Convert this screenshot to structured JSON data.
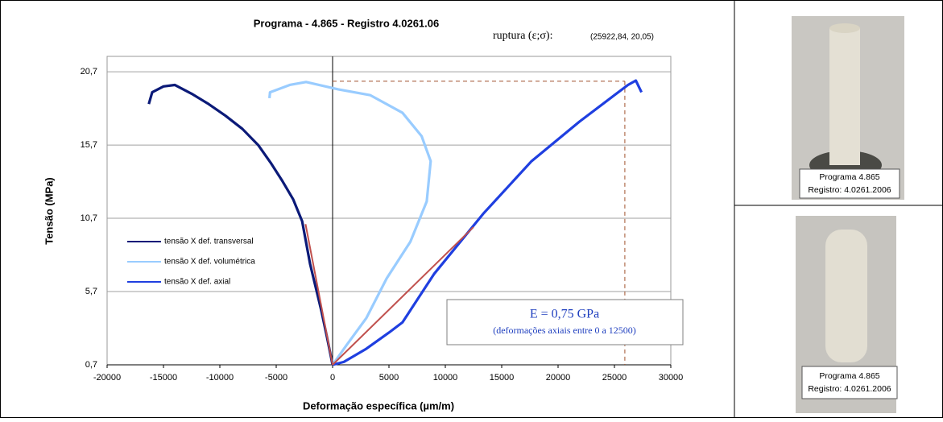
{
  "chart_data": {
    "type": "line",
    "title": "Programa - 4.865 - Registro 4.0261.06",
    "annotation_label": "ruptura (ε;σ):",
    "annotation_value": "(25922,84, 20,05)",
    "rupture": {
      "x": 25922.84,
      "y": 20.05
    },
    "x_label": "Deformação específica (µm/m)",
    "y_label": "Tensão (MPa)",
    "xlim": [
      -20000,
      30000
    ],
    "xticks": [
      -20000,
      -15000,
      -10000,
      -5000,
      0,
      5000,
      10000,
      15000,
      20000,
      25000,
      30000
    ],
    "ylim": [
      0.7,
      21.75
    ],
    "yticks": [
      {
        "value": 0.7,
        "label": "0,7"
      },
      {
        "value": 5.7,
        "label": "5,7"
      },
      {
        "value": 10.7,
        "label": "10,7"
      },
      {
        "value": 15.7,
        "label": "15,7"
      },
      {
        "value": 20.7,
        "label": "20,7"
      }
    ],
    "grid": true,
    "series": [
      {
        "name": "tensão X def. transversal",
        "color": "#0b1a78",
        "x": [
          0,
          -500,
          -1000,
          -1500,
          -2000,
          -2700,
          -3500,
          -4500,
          -5500,
          -6600,
          -8000,
          -9500,
          -11000,
          -12500,
          -14000,
          -15000,
          -16000,
          -16300
        ],
        "values": [
          0.7,
          2.6,
          4.4,
          6.0,
          7.6,
          10.5,
          12.0,
          13.3,
          14.5,
          15.7,
          16.8,
          17.7,
          18.5,
          19.2,
          19.8,
          19.7,
          19.3,
          18.5
        ]
      },
      {
        "name": "tensão X def. volumétrica",
        "color": "#99ccff",
        "x": [
          0,
          1200,
          3000,
          4800,
          6900,
          8350,
          8700,
          7900,
          6200,
          3350,
          500,
          -2350,
          -3800,
          -5550,
          -5600
        ],
        "values": [
          0.7,
          2.0,
          3.9,
          6.6,
          9.1,
          11.85,
          14.6,
          16.3,
          17.9,
          19.1,
          19.5,
          20.0,
          19.8,
          19.3,
          18.9
        ]
      },
      {
        "name": "tensão X def. axial",
        "color": "#1f3fe0",
        "x": [
          0,
          1000,
          3000,
          5000,
          6200,
          9000,
          13350,
          17650,
          21900,
          26200,
          26900,
          27400
        ],
        "values": [
          0.7,
          0.9,
          1.8,
          2.9,
          3.6,
          6.9,
          11.0,
          14.6,
          17.3,
          19.8,
          20.1,
          19.3
        ]
      }
    ],
    "fits": [
      {
        "color": "#c0504d",
        "x": [
          0,
          12500
        ],
        "values": [
          0.7,
          10.1
        ]
      },
      {
        "color": "#c0504d",
        "x": [
          0,
          -2400
        ],
        "values": [
          0.7,
          10.3
        ]
      }
    ],
    "modulus_label": "E = 0,75 GPa",
    "modulus_note": "(deformações axiais entre 0 a 12500)"
  },
  "photos": [
    {
      "line1": "Programa 4.865",
      "line2": "Registro: 4.0261.2006"
    },
    {
      "line1": "Programa 4.865",
      "line2": "Registro: 4.0261.2006"
    }
  ]
}
